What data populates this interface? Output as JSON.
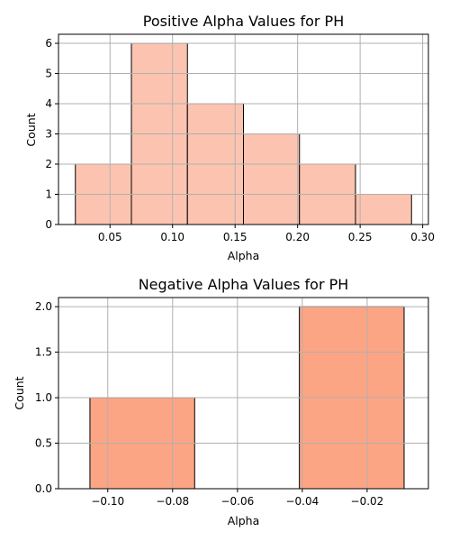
{
  "chart_data": [
    {
      "type": "bar",
      "title": "Positive Alpha Values for PH",
      "xlabel": "Alpha",
      "ylabel": "Count",
      "bins": [
        {
          "x0": 0.0223,
          "x1": 0.0671,
          "count": 2
        },
        {
          "x0": 0.0671,
          "x1": 0.1119,
          "count": 6
        },
        {
          "x0": 0.1119,
          "x1": 0.1567,
          "count": 4
        },
        {
          "x0": 0.1567,
          "x1": 0.2015,
          "count": 3
        },
        {
          "x0": 0.2015,
          "x1": 0.2463,
          "count": 2
        },
        {
          "x0": 0.2463,
          "x1": 0.2911,
          "count": 1
        }
      ],
      "xlim": [
        0.0088,
        0.3046
      ],
      "ylim": [
        0,
        6.3
      ],
      "xticks": [
        "0.05",
        "0.10",
        "0.15",
        "0.20",
        "0.25",
        "0.30"
      ],
      "yticks": [
        "0",
        "1",
        "2",
        "3",
        "4",
        "5",
        "6"
      ],
      "bar_color": "#fcc4b0",
      "grid": true
    },
    {
      "type": "bar",
      "title": "Negative Alpha Values for PH",
      "xlabel": "Alpha",
      "ylabel": "Count",
      "bins": [
        {
          "x0": -0.1055,
          "x1": -0.0732,
          "count": 1
        },
        {
          "x0": -0.0732,
          "x1": -0.0409,
          "count": 0
        },
        {
          "x0": -0.0409,
          "x1": -0.0086,
          "count": 2
        }
      ],
      "xlim": [
        -0.1152,
        -0.0011
      ],
      "ylim": [
        0,
        2.1
      ],
      "xticks": [
        "−0.10",
        "−0.08",
        "−0.06",
        "−0.04",
        "−0.02"
      ],
      "yticks": [
        "0.0",
        "0.5",
        "1.0",
        "1.5",
        "2.0"
      ],
      "bar_color": "#fca584",
      "grid": true
    }
  ]
}
